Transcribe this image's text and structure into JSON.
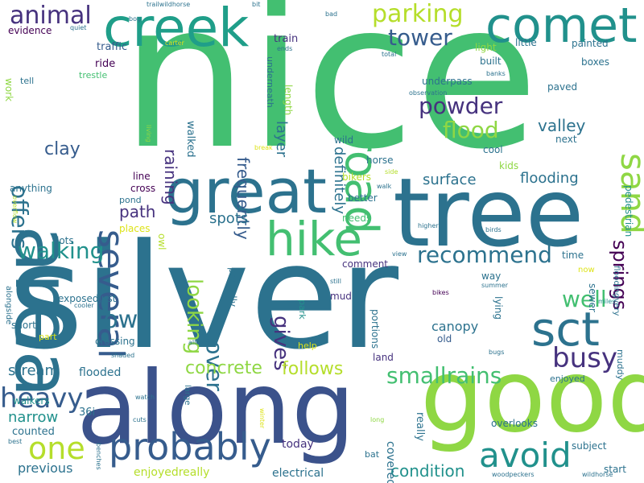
{
  "palette": {
    "green": "#43bf71",
    "purple": "#46327e",
    "blue": "#2c728e",
    "teal": "#21918c",
    "cyan": "#1f9e89",
    "lime": "#8fd744",
    "yellow": "#dde318",
    "indigo": "#3b528b",
    "dark": "#440154",
    "lightgreen": "#5ec962",
    "mint": "#73d055",
    "navy": "#365c8d",
    "olive": "#b5de2b"
  },
  "words": [
    {
      "text": "nice",
      "color": "#43bf71"
    },
    {
      "text": "silver",
      "color": "#2c728e"
    },
    {
      "text": "along",
      "color": "#3b528b"
    },
    {
      "text": "tree",
      "color": "#2c728e"
    },
    {
      "text": "good",
      "color": "#8fd744"
    },
    {
      "text": "area",
      "color": "#2c728e"
    },
    {
      "text": "great",
      "color": "#2c728e"
    },
    {
      "text": "creek",
      "color": "#1f9e89"
    },
    {
      "text": "comet",
      "color": "#21918c"
    },
    {
      "text": "hike",
      "color": "#43bf71"
    },
    {
      "text": "road",
      "color": "#43bf71"
    },
    {
      "text": "sct",
      "color": "#2c728e"
    },
    {
      "text": "probably",
      "color": "#365c8d"
    },
    {
      "text": "several",
      "color": "#365c8d"
    },
    {
      "text": "sand",
      "color": "#8fd744"
    },
    {
      "text": "avoid",
      "color": "#21918c"
    },
    {
      "text": "one",
      "color": "#b5de2b"
    },
    {
      "text": "heavy",
      "color": "#365c8d"
    },
    {
      "text": "busy",
      "color": "#46327e"
    },
    {
      "text": "smallrains",
      "color": "#43bf71"
    },
    {
      "text": "recommend",
      "color": "#2c728e"
    },
    {
      "text": "powder",
      "color": "#46327e"
    },
    {
      "text": "flood",
      "color": "#8fd744"
    },
    {
      "text": "walking",
      "color": "#21918c"
    },
    {
      "text": "well",
      "color": "#43bf71"
    },
    {
      "text": "low",
      "color": "#2c728e"
    },
    {
      "text": "parking",
      "color": "#b5de2b"
    },
    {
      "text": "animal",
      "color": "#46327e"
    },
    {
      "text": "tower",
      "color": "#365c8d"
    },
    {
      "text": "offers",
      "color": "#2c728e"
    },
    {
      "text": "cover",
      "color": "#2c728e"
    },
    {
      "text": "gives",
      "color": "#46327e"
    },
    {
      "text": "looking",
      "color": "#8fd744"
    },
    {
      "text": "springs",
      "color": "#440154"
    },
    {
      "text": "concrete",
      "color": "#8fd744"
    },
    {
      "text": "follows",
      "color": "#b5de2b"
    },
    {
      "text": "condition",
      "color": "#21918c"
    },
    {
      "text": "valley",
      "color": "#2c728e"
    },
    {
      "text": "clay",
      "color": "#365c8d"
    },
    {
      "text": "path",
      "color": "#46327e"
    },
    {
      "text": "raining",
      "color": "#46327e"
    },
    {
      "text": "frequently",
      "color": "#365c8d"
    },
    {
      "text": "definitely",
      "color": "#2c728e"
    },
    {
      "text": "layer",
      "color": "#2c728e"
    },
    {
      "text": "surface",
      "color": "#2c728e"
    },
    {
      "text": "flooding",
      "color": "#2c728e"
    },
    {
      "text": "spots",
      "color": "#2c728e"
    },
    {
      "text": "stream",
      "color": "#2c728e"
    },
    {
      "text": "narrow",
      "color": "#21918c"
    },
    {
      "text": "previous",
      "color": "#2c728e"
    },
    {
      "text": "flooded",
      "color": "#2c728e"
    },
    {
      "text": "canopy",
      "color": "#2c728e"
    },
    {
      "text": "enjoyedreally",
      "color": "#b5de2b"
    },
    {
      "text": "electrical",
      "color": "#2c728e"
    },
    {
      "text": "today",
      "color": "#46327e"
    },
    {
      "text": "covered",
      "color": "#2c728e"
    },
    {
      "text": "counted",
      "color": "#2c728e"
    },
    {
      "text": "36i",
      "color": "#2c728e"
    },
    {
      "text": "really",
      "color": "#2c728e"
    },
    {
      "text": "traffic",
      "color": "#365c8d"
    },
    {
      "text": "ride",
      "color": "#440154"
    },
    {
      "text": "trestle",
      "color": "#43bf71"
    },
    {
      "text": "evidence",
      "color": "#440154"
    },
    {
      "text": "work",
      "color": "#8fd744"
    },
    {
      "text": "tell",
      "color": "#2c728e"
    },
    {
      "text": "train",
      "color": "#46327e"
    },
    {
      "text": "underneath",
      "color": "#2c728e"
    },
    {
      "text": "length",
      "color": "#8fd744"
    },
    {
      "text": "walked",
      "color": "#2c728e"
    },
    {
      "text": "anything",
      "color": "#2c728e"
    },
    {
      "text": "line",
      "color": "#440154"
    },
    {
      "text": "cross",
      "color": "#440154"
    },
    {
      "text": "pond",
      "color": "#2c728e"
    },
    {
      "text": "places",
      "color": "#dde318"
    },
    {
      "text": "lots",
      "color": "#2c728e"
    },
    {
      "text": "owl",
      "color": "#b5de2b"
    },
    {
      "text": "exposedjust",
      "color": "#2c728e"
    },
    {
      "text": "crossing",
      "color": "#2c728e"
    },
    {
      "text": "short",
      "color": "#2c728e"
    },
    {
      "text": "part",
      "color": "#dde318"
    },
    {
      "text": "alongside",
      "color": "#2c728e"
    },
    {
      "text": "walkers",
      "color": "#21918c"
    },
    {
      "text": "partially",
      "color": "#2c728e"
    },
    {
      "text": "park",
      "color": "#21918c"
    },
    {
      "text": "help",
      "color": "#dde318"
    },
    {
      "text": "mud",
      "color": "#46327e"
    },
    {
      "text": "alot",
      "color": "#2c728e"
    },
    {
      "text": "portions",
      "color": "#2c728e"
    },
    {
      "text": "land",
      "color": "#46327e"
    },
    {
      "text": "old",
      "color": "#365c8d"
    },
    {
      "text": "lying",
      "color": "#2c728e"
    },
    {
      "text": "way",
      "color": "#2c728e"
    },
    {
      "text": "comment",
      "color": "#46327e"
    },
    {
      "text": "needs",
      "color": "#43bf71"
    },
    {
      "text": "better",
      "color": "#2c728e"
    },
    {
      "text": "bikers",
      "color": "#b5de2b"
    },
    {
      "text": "kids",
      "color": "#8fd744"
    },
    {
      "text": "horse",
      "color": "#2c728e"
    },
    {
      "text": "wild",
      "color": "#2c728e"
    },
    {
      "text": "cool",
      "color": "#2c728e"
    },
    {
      "text": "next",
      "color": "#2c728e"
    },
    {
      "text": "paved",
      "color": "#2c728e"
    },
    {
      "text": "underpass",
      "color": "#2c728e"
    },
    {
      "text": "built",
      "color": "#2c728e"
    },
    {
      "text": "little",
      "color": "#2c728e"
    },
    {
      "text": "light",
      "color": "#8fd744"
    },
    {
      "text": "painted",
      "color": "#2c728e"
    },
    {
      "text": "boxes",
      "color": "#2c728e"
    },
    {
      "text": "sewer",
      "color": "#2c728e"
    },
    {
      "text": "time",
      "color": "#2c728e"
    },
    {
      "text": "pedestrian",
      "color": "#21918c"
    },
    {
      "text": "floodingvery",
      "color": "#2c728e"
    },
    {
      "text": "muddy",
      "color": "#2c728e"
    },
    {
      "text": "enjoyed",
      "color": "#2c728e"
    },
    {
      "text": "subject",
      "color": "#2c728e"
    },
    {
      "text": "overlooks",
      "color": "#2c728e"
    },
    {
      "text": "start",
      "color": "#2c728e"
    },
    {
      "text": "large",
      "color": "#2c728e"
    },
    {
      "text": "bat",
      "color": "#2c728e"
    },
    {
      "text": "now",
      "color": "#dde318"
    },
    {
      "text": "bikes",
      "color": "#440154"
    },
    {
      "text": "still",
      "color": "#2c728e"
    },
    {
      "text": "summer",
      "color": "#2c728e"
    },
    {
      "text": "miles",
      "color": "#21918c"
    },
    {
      "text": "bugs",
      "color": "#2c728e"
    },
    {
      "text": "trailwildhorse",
      "color": "#2c728e"
    },
    {
      "text": "bit",
      "color": "#2c728e"
    },
    {
      "text": "bad",
      "color": "#2c728e"
    },
    {
      "text": "quiet",
      "color": "#2c728e"
    },
    {
      "text": "carter",
      "color": "#dde318"
    },
    {
      "text": "ends",
      "color": "#2c728e"
    },
    {
      "text": "total",
      "color": "#2c728e"
    },
    {
      "text": "banks",
      "color": "#2c728e"
    },
    {
      "text": "observation",
      "color": "#2c728e"
    },
    {
      "text": "bog",
      "color": "#2c728e"
    },
    {
      "text": "living",
      "color": "#8fd744"
    },
    {
      "text": "break",
      "color": "#dde318"
    },
    {
      "text": "side",
      "color": "#b5de2b"
    },
    {
      "text": "walk",
      "color": "#2c728e"
    },
    {
      "text": "overflow",
      "color": "#b5de2b"
    },
    {
      "text": "birds",
      "color": "#2c728e"
    },
    {
      "text": "higher",
      "color": "#2c728e"
    },
    {
      "text": "view",
      "color": "#2c728e"
    },
    {
      "text": "cooler",
      "color": "#2c728e"
    },
    {
      "text": "allowed",
      "color": "#2c728e"
    },
    {
      "text": "shaded",
      "color": "#2c728e"
    },
    {
      "text": "watch",
      "color": "#2c728e"
    },
    {
      "text": "cuts",
      "color": "#2c728e"
    },
    {
      "text": "winter",
      "color": "#dde318"
    },
    {
      "text": "long",
      "color": "#8fd744"
    },
    {
      "text": "best",
      "color": "#2c728e"
    },
    {
      "text": "benches",
      "color": "#2c728e"
    },
    {
      "text": "woodpeckers",
      "color": "#2c728e"
    },
    {
      "text": "wildhorse",
      "color": "#2c728e"
    }
  ]
}
